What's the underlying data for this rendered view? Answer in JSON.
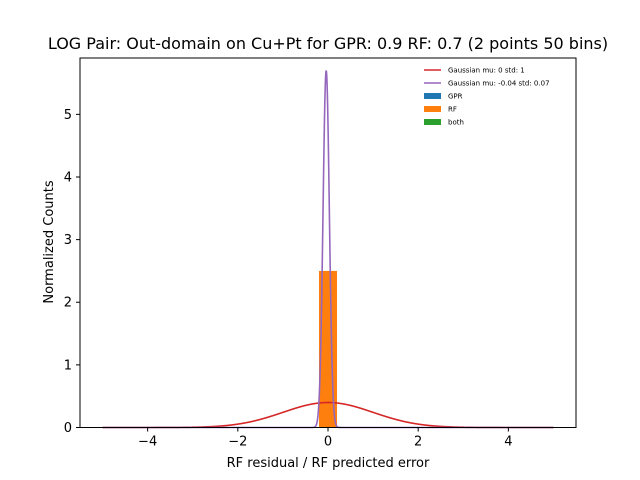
{
  "chart_data": {
    "type": "histogram",
    "title": "LOG Pair: Out-domain on Cu+Pt for GPR: 0.9 RF: 0.7 (2 points 50 bins)",
    "xlabel": "RF residual / RF predicted error",
    "ylabel": "Normalized Counts",
    "xlim": [
      -5.5,
      5.5
    ],
    "ylim": [
      0,
      5.9
    ],
    "xticks": [
      -4,
      -2,
      0,
      2,
      4
    ],
    "xtick_labels": [
      "−4",
      "−2",
      "0",
      "2",
      "4"
    ],
    "yticks": [
      0,
      1,
      2,
      3,
      4,
      5
    ],
    "ytick_labels": [
      "0",
      "1",
      "2",
      "3",
      "4",
      "5"
    ],
    "grid": false,
    "legend_placement": "top-right",
    "series": [
      {
        "name": "Gaussian mu: 0 std: 1",
        "kind": "gaussian",
        "mu": 0,
        "std": 1,
        "x_range": [
          -5,
          5
        ],
        "color": "#d62728"
      },
      {
        "name": "Gaussian mu: -0.04 std: 0.07",
        "kind": "gaussian",
        "mu": -0.04,
        "std": 0.07,
        "x_range": [
          -5,
          5
        ],
        "color": "#9467bd"
      },
      {
        "name": "GPR",
        "kind": "bars",
        "bars": [],
        "color": "#1f77b4"
      },
      {
        "name": "RF",
        "kind": "bars",
        "bars": [
          {
            "x0": -0.2,
            "x1": 0.2,
            "y": 2.5
          }
        ],
        "color": "#ff7f0e"
      },
      {
        "name": "both",
        "kind": "bars",
        "bars": [],
        "color": "#2ca02c"
      }
    ]
  }
}
